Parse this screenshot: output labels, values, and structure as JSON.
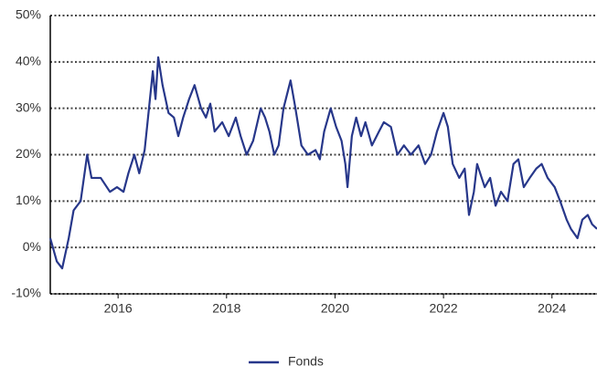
{
  "chart_data": {
    "type": "line",
    "x": [
      2014.75,
      2014.87,
      2014.97,
      2015.09,
      2015.18,
      2015.31,
      2015.43,
      2015.51,
      2015.68,
      2015.85,
      2015.98,
      2016.1,
      2016.19,
      2016.3,
      2016.39,
      2016.49,
      2016.57,
      2016.64,
      2016.69,
      2016.74,
      2016.82,
      2016.93,
      2017.03,
      2017.11,
      2017.2,
      2017.31,
      2017.41,
      2017.53,
      2017.62,
      2017.7,
      2017.78,
      2017.92,
      2018.04,
      2018.17,
      2018.26,
      2018.37,
      2018.49,
      2018.63,
      2018.71,
      2018.79,
      2018.88,
      2018.96,
      2019.05,
      2019.18,
      2019.27,
      2019.38,
      2019.5,
      2019.64,
      2019.72,
      2019.8,
      2019.92,
      2020.02,
      2020.12,
      2020.19,
      2020.23,
      2020.31,
      2020.39,
      2020.48,
      2020.56,
      2020.68,
      2020.81,
      2020.9,
      2021.03,
      2021.15,
      2021.27,
      2021.4,
      2021.54,
      2021.66,
      2021.77,
      2021.88,
      2022.0,
      2022.08,
      2022.17,
      2022.29,
      2022.39,
      2022.47,
      2022.56,
      2022.62,
      2022.76,
      2022.86,
      2022.96,
      2023.06,
      2023.18,
      2023.29,
      2023.38,
      2023.48,
      2023.59,
      2023.71,
      2023.81,
      2023.92,
      2024.05,
      2024.15,
      2024.27,
      2024.35,
      2024.47,
      2024.56,
      2024.66,
      2024.74,
      2024.83
    ],
    "series": [
      {
        "name": "Fonds",
        "color": "#27378a",
        "values": [
          2,
          -3,
          -4.5,
          2,
          8,
          10,
          20,
          15,
          15,
          12,
          13,
          12,
          16,
          20,
          16,
          21,
          30,
          38,
          32,
          41,
          35,
          29,
          28,
          24,
          28,
          32,
          35,
          30,
          28,
          31,
          25,
          27,
          24,
          28,
          24,
          20,
          23,
          30,
          28,
          25,
          20,
          22,
          30,
          36,
          30,
          22,
          20,
          21,
          19,
          25,
          30,
          26,
          23,
          18,
          13,
          24,
          28,
          24,
          27,
          22,
          25,
          27,
          26,
          20,
          22,
          20,
          22,
          18,
          20,
          25,
          29,
          26,
          18,
          15,
          17,
          7,
          12,
          18,
          13,
          15,
          9,
          12,
          10,
          18,
          19,
          13,
          15,
          17,
          18,
          15,
          13,
          10,
          6,
          4,
          2,
          6,
          7,
          5,
          4
        ]
      }
    ],
    "xlim": [
      2014.75,
      2024.83
    ],
    "xticks": [
      2016,
      2018,
      2020,
      2022,
      2024
    ],
    "ylim": [
      -10,
      50
    ],
    "yticks": [
      {
        "value": -10,
        "label": "-10%"
      },
      {
        "value": 0,
        "label": "0%"
      },
      {
        "value": 10,
        "label": "10%"
      },
      {
        "value": 20,
        "label": "20%"
      },
      {
        "value": 30,
        "label": "30%"
      },
      {
        "value": 40,
        "label": "40%"
      },
      {
        "value": 50,
        "label": "50%"
      }
    ],
    "grid": true,
    "legend": "bottom"
  }
}
